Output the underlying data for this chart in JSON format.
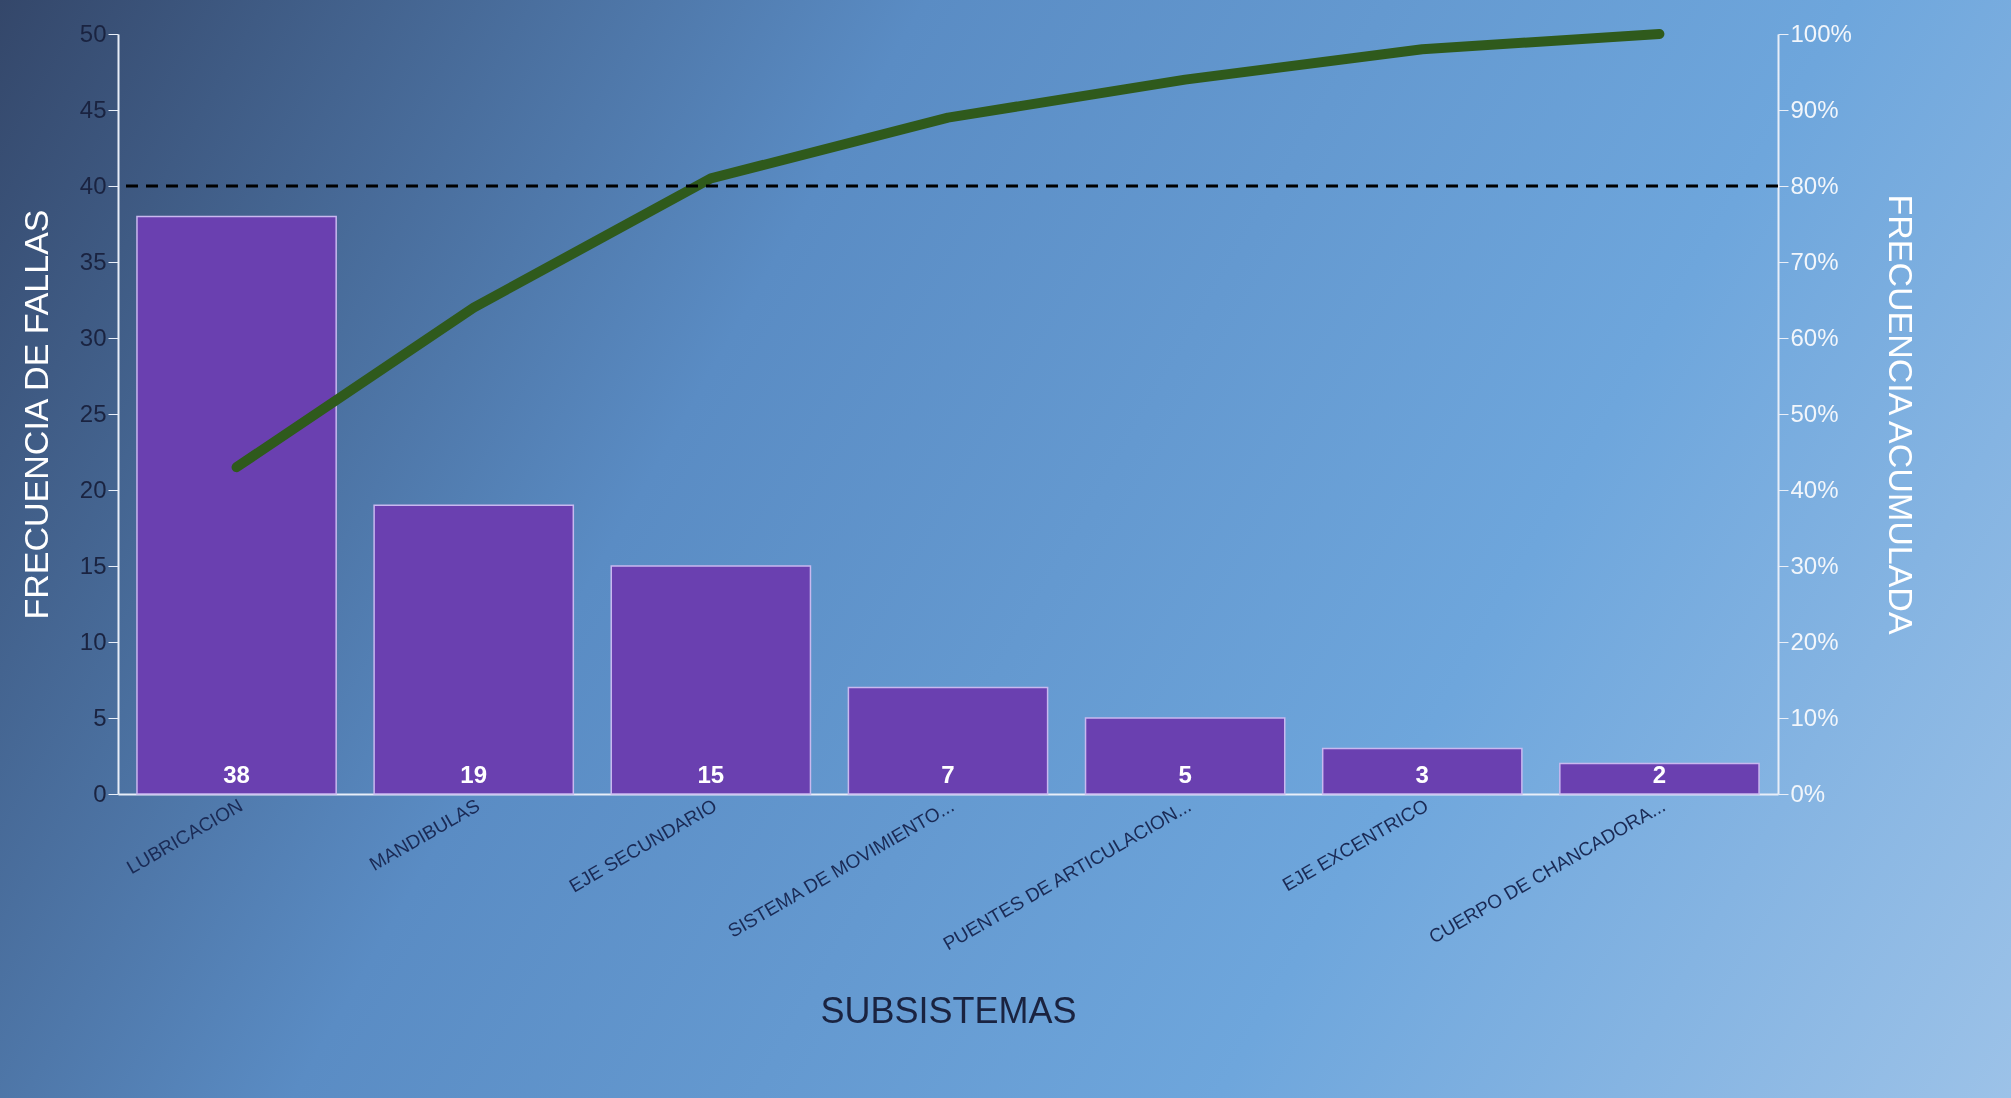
{
  "chart_data": {
    "type": "bar",
    "xlabel": "SUBSISTEMAS",
    "ylabel": "FRECUENCIA DE FALLAS",
    "y2label": "FRECUENCIA ACUMULADA",
    "categories": [
      "LUBRICACION",
      "MANDIBULAS",
      "EJE SECUNDARIO",
      "SISTEMA DE MOVIMIENTO...",
      "PUENTES DE ARTICULACION...",
      "EJE EXCENTRICO",
      "CUERPO DE CHANCADORA..."
    ],
    "series": [
      {
        "color": "#6a40b0",
        "values": [
          38,
          19,
          15,
          7,
          5,
          3,
          2
        ],
        "value_labels": [
          "38",
          "19",
          "15",
          "7",
          "5",
          "3",
          "2"
        ]
      },
      {
        "type": "line",
        "axis": "y2",
        "color": "#2f5a1c",
        "values": [
          43,
          64,
          81,
          89,
          94,
          98,
          100
        ]
      }
    ],
    "ylim": [
      0,
      50
    ],
    "yticks": [
      0,
      5,
      10,
      15,
      20,
      25,
      30,
      35,
      40,
      45,
      50
    ],
    "y2lim": [
      0,
      100
    ],
    "y2ticks": [
      {
        "value": 0,
        "label": "0%"
      },
      {
        "value": 10,
        "label": "10%"
      },
      {
        "value": 20,
        "label": "20%"
      },
      {
        "value": 30,
        "label": "30%"
      },
      {
        "value": 40,
        "label": "40%"
      },
      {
        "value": 50,
        "label": "50%"
      },
      {
        "value": 60,
        "label": "60%"
      },
      {
        "value": 70,
        "label": "70%"
      },
      {
        "value": 80,
        "label": "80%"
      },
      {
        "value": 90,
        "label": "90%"
      },
      {
        "value": 100,
        "label": "100%"
      }
    ],
    "ref_lines": [
      {
        "axis": "y2",
        "value": 80,
        "color": "#000000",
        "line_style": "dashed"
      }
    ],
    "grid": false,
    "marker": "none",
    "line_style": "solid"
  }
}
